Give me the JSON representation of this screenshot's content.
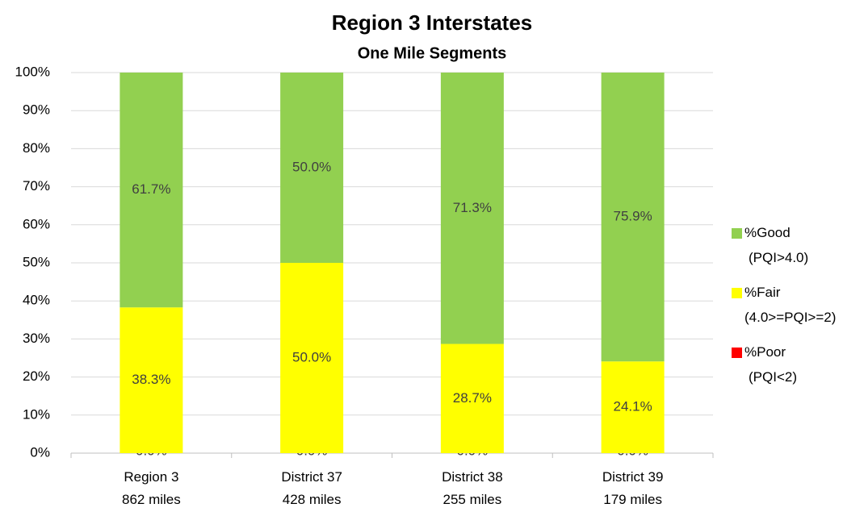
{
  "chart_data": {
    "type": "stacked_bar",
    "title": "Region 3 Interstates",
    "subtitle": "One Mile Segments",
    "categories": [
      "Region 3\n862 miles",
      "District 37\n428 miles",
      "District 38\n255 miles",
      "District 39\n179 miles"
    ],
    "series": [
      {
        "name": "%Poor\n(PQI<2)",
        "color": "#ff0000",
        "values": [
          0.0,
          0.0,
          0.0,
          0.0
        ],
        "value_labels": [
          "0.0%",
          "0.0%",
          "0.0%",
          "0.0%"
        ]
      },
      {
        "name": "%Fair\n(4.0>=PQI>=2)",
        "color": "#ffff00",
        "values": [
          38.3,
          50.0,
          28.7,
          24.1
        ],
        "value_labels": [
          "38.3%",
          "50.0%",
          "28.7%",
          "24.1%"
        ]
      },
      {
        "name": "%Good\n(PQI>4.0)",
        "color": "#92d050",
        "values": [
          61.7,
          50.0,
          71.3,
          75.9
        ],
        "value_labels": [
          "61.7%",
          "50.0%",
          "71.3%",
          "75.9%"
        ]
      }
    ],
    "ylim": [
      0,
      100
    ],
    "yticks": [
      {
        "value": 0,
        "label": "0%"
      },
      {
        "value": 10,
        "label": "10%"
      },
      {
        "value": 20,
        "label": "20%"
      },
      {
        "value": 30,
        "label": "30%"
      },
      {
        "value": 40,
        "label": "40%"
      },
      {
        "value": 50,
        "label": "50%"
      },
      {
        "value": 60,
        "label": "60%"
      },
      {
        "value": 70,
        "label": "70%"
      },
      {
        "value": 80,
        "label": "80%"
      },
      {
        "value": 90,
        "label": "90%"
      },
      {
        "value": 100,
        "label": "100%"
      }
    ],
    "grid": true,
    "legend": "right"
  }
}
